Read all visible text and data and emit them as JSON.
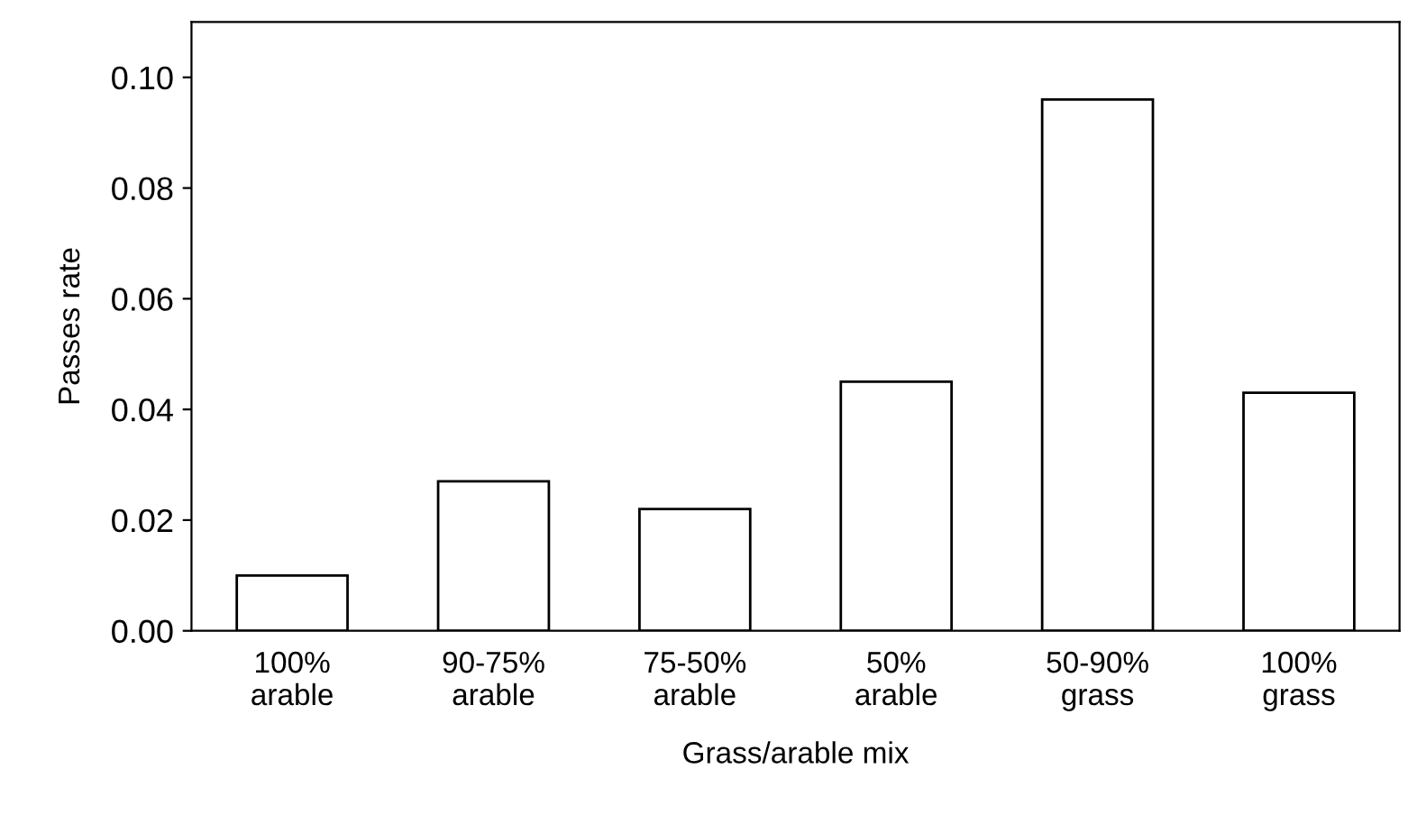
{
  "chart_data": {
    "type": "bar",
    "xlabel": "Grass/arable mix",
    "ylabel": "Passes rate",
    "categories": [
      "100%\narable",
      "90-75%\narable",
      "75-50%\narable",
      "50%\narable",
      "50-90%\ngrass",
      "100%\ngrass"
    ],
    "values": [
      0.01,
      0.027,
      0.022,
      0.045,
      0.096,
      0.043
    ],
    "color": "#ffffff",
    "ylim": [
      0,
      0.11
    ],
    "yticks": [
      {
        "value": 0,
        "label": "0.00"
      },
      {
        "value": 0.02,
        "label": "0.02"
      },
      {
        "value": 0.04,
        "label": "0.04"
      },
      {
        "value": 0.06,
        "label": "0.06"
      },
      {
        "value": 0.08,
        "label": "0.08"
      },
      {
        "value": 0.1,
        "label": "0.10"
      }
    ],
    "grid": false,
    "legend": false
  }
}
